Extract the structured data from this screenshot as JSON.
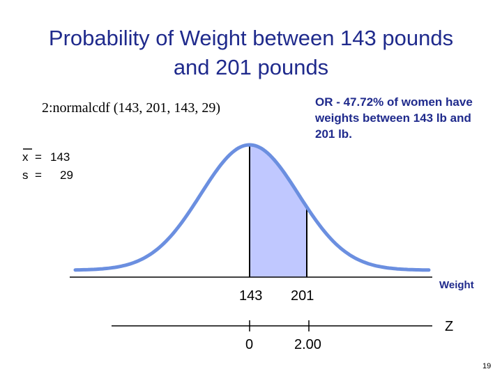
{
  "title": "Probability of Weight between 143 pounds and 201 pounds",
  "formula": "2:normalcdf (143, 201, 143, 29)",
  "note": "OR -  47.72% of women have weights between 143 lb and 201 lb.",
  "params": [
    {
      "symbol": "x",
      "eq": "=",
      "value": "143"
    },
    {
      "symbol": "s",
      "eq": "=",
      "value": "29"
    }
  ],
  "weight_axis": {
    "label": "Weight",
    "ticks": [
      "143",
      "201"
    ]
  },
  "z_axis": {
    "label": "Z",
    "ticks": [
      "0",
      "2.00"
    ]
  },
  "page_number": "19"
}
